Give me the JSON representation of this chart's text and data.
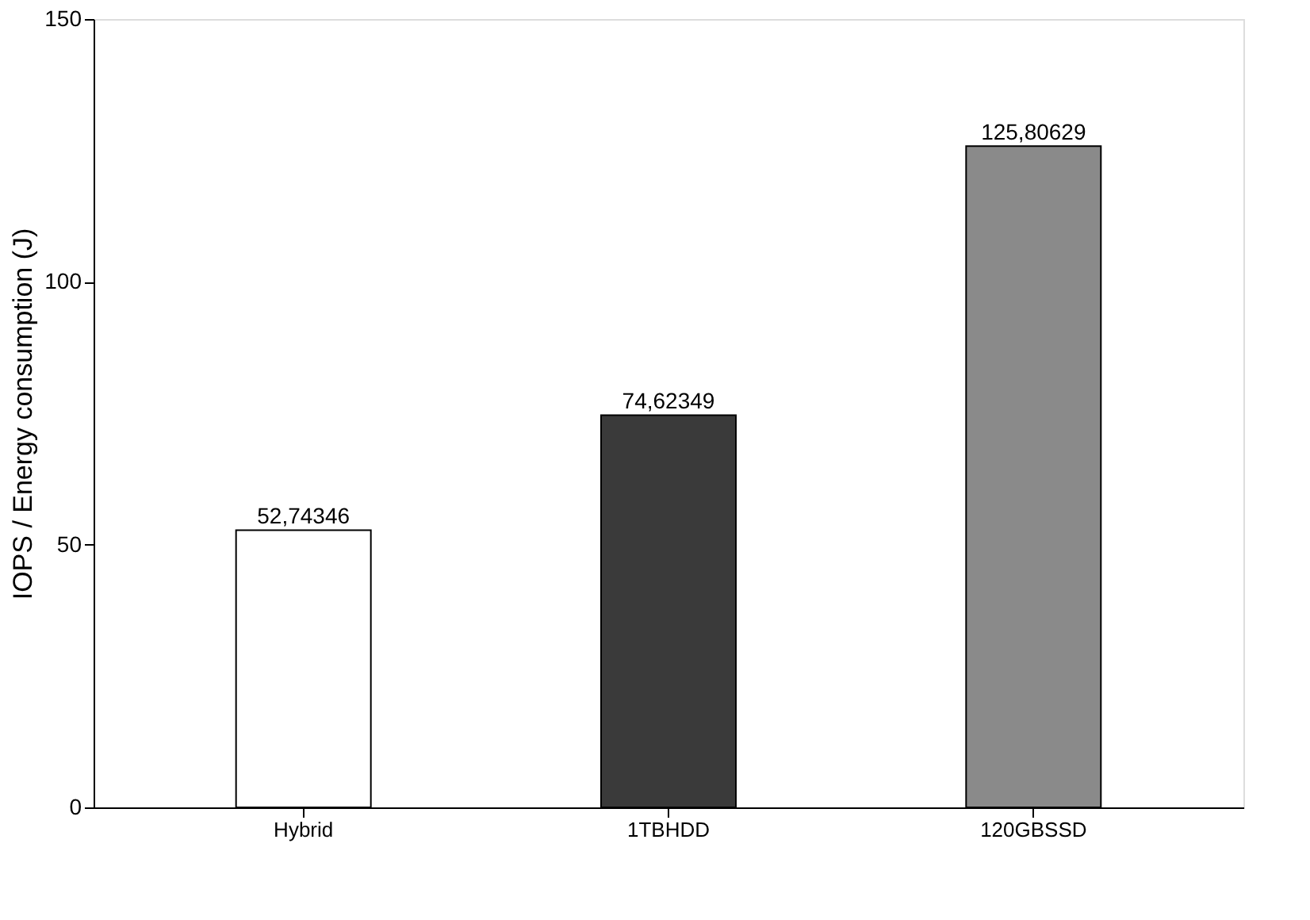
{
  "chart_data": {
    "type": "bar",
    "ylabel": "IOPS / Energy consumption (J)",
    "categories": [
      "Hybrid",
      "1TBHDD",
      "120GBSSD"
    ],
    "values": [
      52.74346,
      74.62349,
      125.80629
    ],
    "value_labels": [
      "52,74346",
      "74,62349",
      "125,80629"
    ],
    "colors": [
      "#ffffff",
      "#3a3a3a",
      "#8a8a8a"
    ],
    "ylim": [
      0,
      150
    ],
    "yticks": [
      0,
      50,
      100,
      150
    ],
    "grid": false
  }
}
